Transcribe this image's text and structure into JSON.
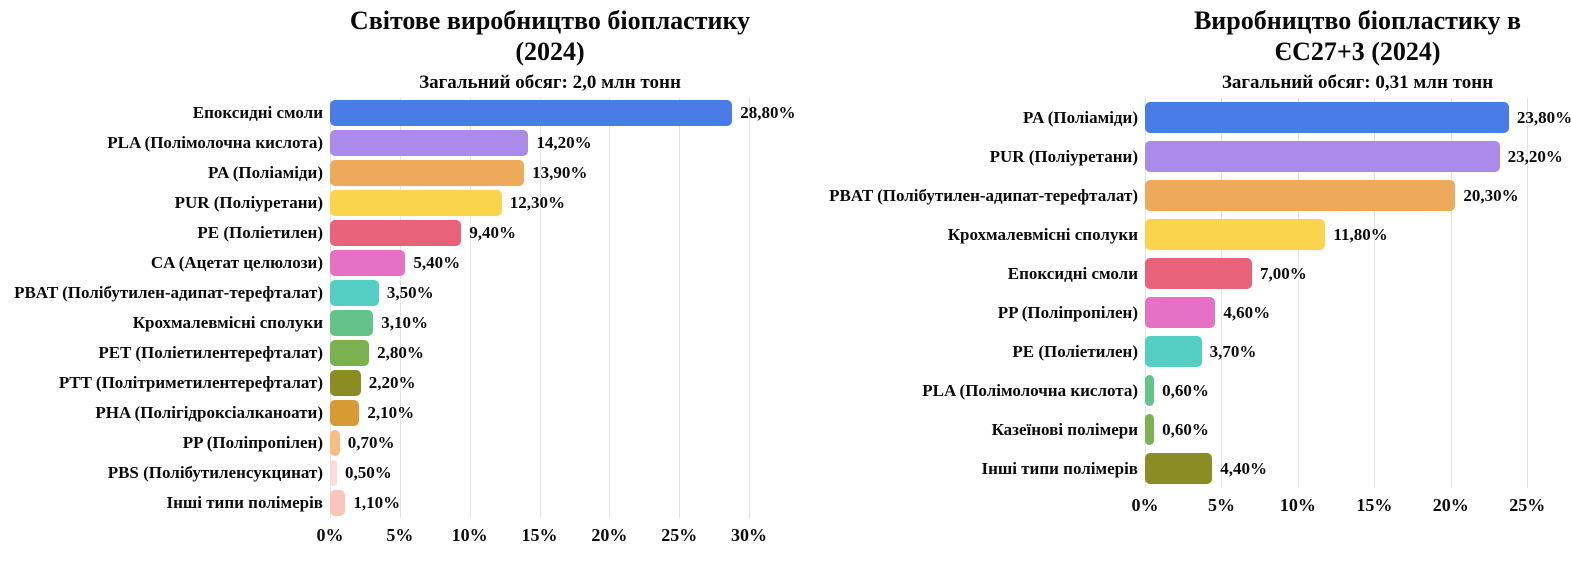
{
  "page": {
    "background": "#ffffff",
    "text_color": "#111111"
  },
  "chart_data": [
    {
      "type": "bar",
      "orientation": "horizontal",
      "title": "Світове виробництво біопластику (2024)",
      "title_lines": [
        "Світове виробництво біопластику",
        "(2024)"
      ],
      "subtitle": "Загальний обсяг: 2,0 млн тонн",
      "categories": [
        "Епоксидні смоли",
        "PLA (Полімолочна кислота)",
        "PA (Поліаміди)",
        "PUR (Поліуретани)",
        "PE (Поліетилен)",
        "CA (Ацетат целюлози)",
        "PBAT (Полібутилен-адипат-терефталат)",
        "Крохмалевмісні сполуки",
        "PET (Поліетилентерефталат)",
        "PTT (Політриметилентерефталат)",
        "PHA (Полігідроксіалканоати)",
        "PP (Поліпропілен)",
        "PBS (Полібутиленсукцинат)",
        "Інші типи полімерів"
      ],
      "values": [
        28.8,
        14.2,
        13.9,
        12.3,
        9.4,
        5.4,
        3.5,
        3.1,
        2.8,
        2.2,
        2.1,
        0.7,
        0.5,
        1.1
      ],
      "value_labels": [
        "28,80%",
        "14,20%",
        "13,90%",
        "12,30%",
        "9,40%",
        "5,40%",
        "3,50%",
        "3,10%",
        "2,80%",
        "2,20%",
        "2,10%",
        "0,70%",
        "0,50%",
        "1,10%"
      ],
      "colors": [
        "#4a7ce8",
        "#ab8ae9",
        "#ecaa5a",
        "#fad44d",
        "#e8637a",
        "#e471c4",
        "#55cec3",
        "#63c389",
        "#7bb150",
        "#8b8d24",
        "#d89a33",
        "#f7bd84",
        "#fbdcd8",
        "#f9c5bc"
      ],
      "xlabel": "",
      "ylabel": "",
      "xtick_labels": [
        "0%",
        "5%",
        "10%",
        "15%",
        "20%",
        "25%",
        "30%"
      ],
      "xtick_values": [
        0,
        5,
        10,
        15,
        20,
        25,
        30
      ],
      "xlim": [
        0,
        31.5
      ],
      "grid": true,
      "grid_color": "#e3e3e3",
      "legend": false
    },
    {
      "type": "bar",
      "orientation": "horizontal",
      "title": "Виробництво біопластику в ЄС27+3 (2024)",
      "title_lines": [
        "Виробництво біопластику в",
        "ЄС27+3 (2024)"
      ],
      "subtitle": "Загальний обсяг: 0,31 млн тонн",
      "categories": [
        "PA (Поліаміди)",
        "PUR (Поліуретани)",
        "PBAT (Полібутилен-адипат-терефталат)",
        "Крохмалевмісні сполуки",
        "Епоксидні смоли",
        "PP (Поліпропілен)",
        "PE (Поліетилен)",
        "PLA (Полімолочна кислота)",
        "Казеїнові полімери",
        "Інші типи полімерів"
      ],
      "values": [
        23.8,
        23.2,
        20.3,
        11.8,
        7.0,
        4.6,
        3.7,
        0.6,
        0.6,
        4.4
      ],
      "value_labels": [
        "23,80%",
        "23,20%",
        "20,30%",
        "11,80%",
        "7,00%",
        "4,60%",
        "3,70%",
        "0,60%",
        "0,60%",
        "4,40%"
      ],
      "colors": [
        "#4a7ce8",
        "#ab8ae9",
        "#ecaa5a",
        "#fad44d",
        "#e8637a",
        "#e471c4",
        "#55cec3",
        "#63c389",
        "#7bb150",
        "#8b8d24"
      ],
      "xlabel": "",
      "ylabel": "",
      "xtick_labels": [
        "0%",
        "5%",
        "10%",
        "15%",
        "20%",
        "25%"
      ],
      "xtick_values": [
        0,
        5,
        10,
        15,
        20,
        25
      ],
      "xlim": [
        0,
        27.8
      ],
      "grid": true,
      "grid_color": "#e3e3e3",
      "legend": false
    }
  ]
}
